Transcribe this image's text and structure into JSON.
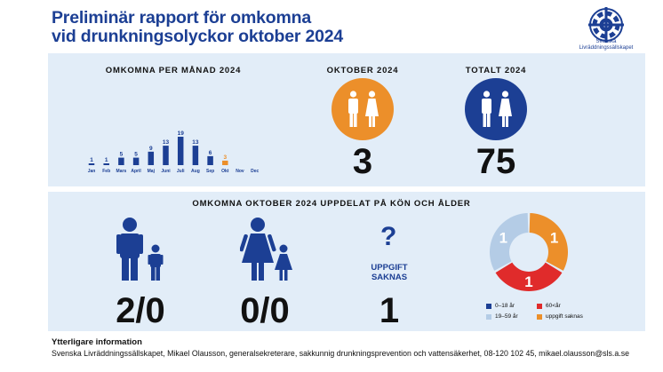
{
  "header": {
    "title_line1": "Preliminär rapport för omkomna",
    "title_line2": "vid drunkningsolyckor oktober 2024",
    "logo_text_line1": "Svenska",
    "logo_text_line2": "Livräddningssällskapet"
  },
  "top": {
    "monthly_heading": "OMKOMNA PER MÅNAD 2024",
    "october_heading": "OKTOBER 2024",
    "october_value": "3",
    "total_heading": "TOTALT 2024",
    "total_value": "75"
  },
  "bottom": {
    "heading": "OMKOMNA OKTOBER 2024 UPPDELAT PÅ KÖN OCH ÅLDER",
    "men_value": "2/0",
    "women_value": "0/0",
    "unknown_label_line1": "UPPGIFT",
    "unknown_label_line2": "SAKNAS",
    "unknown_value": "1"
  },
  "footer": {
    "title": "Ytterligare information",
    "text": "Svenska Livräddningssällskapet, Mikael Olausson, generalsekreterare, sakkunnig drunkningsprevention och vattensäkerhet, 08-120 102 45, mikael.olausson@sls.a.se"
  },
  "colors": {
    "brand_blue": "#1c3f94",
    "orange": "#ec8f2a",
    "red": "#e02b2b",
    "light_blue": "#b4cce6",
    "panel_bg": "#e2edf8"
  },
  "icons": [
    "man-icon",
    "woman-icon",
    "boy-icon",
    "girl-icon",
    "question-mark-icon",
    "lifebuoy-logo-icon"
  ],
  "chart_data": [
    {
      "type": "bar",
      "title": "OMKOMNA PER MÅNAD 2024",
      "categories": [
        "Jan",
        "Feb",
        "Mars",
        "April",
        "Maj",
        "Juni",
        "Juli",
        "Aug",
        "Sep",
        "Okt",
        "Nov",
        "Dec"
      ],
      "values": [
        1,
        1,
        5,
        5,
        9,
        13,
        19,
        13,
        6,
        3,
        null,
        null
      ],
      "value_labels": [
        "1",
        "1",
        "5",
        "5",
        "9",
        "13",
        "19",
        "13",
        "6",
        "3",
        "",
        ""
      ],
      "highlight_category": "Okt",
      "colors": {
        "default": "#1c3f94",
        "highlight": "#ec8f2a"
      }
    },
    {
      "type": "pie",
      "donut": true,
      "slices": [
        {
          "label": "0–18 år",
          "value": 0,
          "value_label": "",
          "color": "#1c3f94"
        },
        {
          "label": "19–59 år",
          "value": 1,
          "value_label": "1",
          "color": "#b4cce6"
        },
        {
          "label": "60<år",
          "value": 1,
          "value_label": "1",
          "color": "#e02b2b"
        },
        {
          "label": "uppgift saknas",
          "value": 1,
          "value_label": "1",
          "color": "#ec8f2a"
        }
      ],
      "legend_order": [
        "0–18 år",
        "60<år",
        "19–59 år",
        "uppgift saknas"
      ]
    }
  ]
}
